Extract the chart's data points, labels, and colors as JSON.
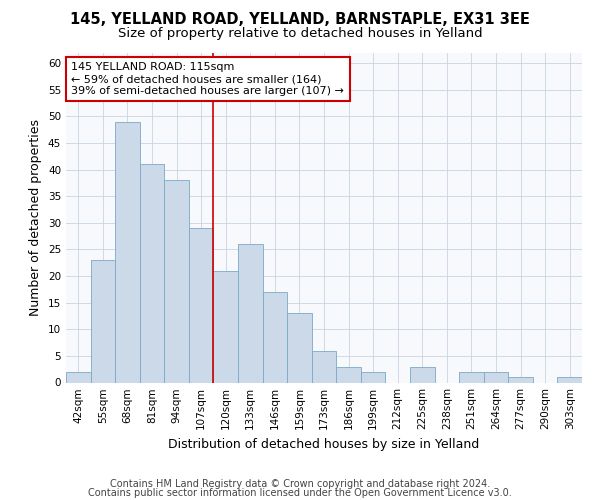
{
  "title1": "145, YELLAND ROAD, YELLAND, BARNSTAPLE, EX31 3EE",
  "title2": "Size of property relative to detached houses in Yelland",
  "xlabel": "Distribution of detached houses by size in Yelland",
  "ylabel": "Number of detached properties",
  "bins": [
    "42sqm",
    "55sqm",
    "68sqm",
    "81sqm",
    "94sqm",
    "107sqm",
    "120sqm",
    "133sqm",
    "146sqm",
    "159sqm",
    "173sqm",
    "186sqm",
    "199sqm",
    "212sqm",
    "225sqm",
    "238sqm",
    "251sqm",
    "264sqm",
    "277sqm",
    "290sqm",
    "303sqm"
  ],
  "values": [
    2,
    23,
    49,
    41,
    38,
    29,
    21,
    26,
    17,
    13,
    6,
    3,
    2,
    0,
    3,
    0,
    2,
    2,
    1,
    0,
    1
  ],
  "bar_color": "#ccd9e8",
  "bar_edge_color": "#7aaac8",
  "vline_x": 5.5,
  "vline_color": "#cc0000",
  "annotation_line1": "145 YELLAND ROAD: 115sqm",
  "annotation_line2": "← 59% of detached houses are smaller (164)",
  "annotation_line3": "39% of semi-detached houses are larger (107) →",
  "annotation_box_color": "#ffffff",
  "annotation_box_edge": "#cc0000",
  "ylim": [
    0,
    62
  ],
  "yticks": [
    0,
    5,
    10,
    15,
    20,
    25,
    30,
    35,
    40,
    45,
    50,
    55,
    60
  ],
  "footer1": "Contains HM Land Registry data © Crown copyright and database right 2024.",
  "footer2": "Contains public sector information licensed under the Open Government Licence v3.0.",
  "bg_color": "#ffffff",
  "plot_bg_color": "#f7f9fc",
  "title_fontsize": 10.5,
  "subtitle_fontsize": 9.5,
  "tick_fontsize": 7.5,
  "label_fontsize": 9,
  "footer_fontsize": 7,
  "annotation_fontsize": 8
}
